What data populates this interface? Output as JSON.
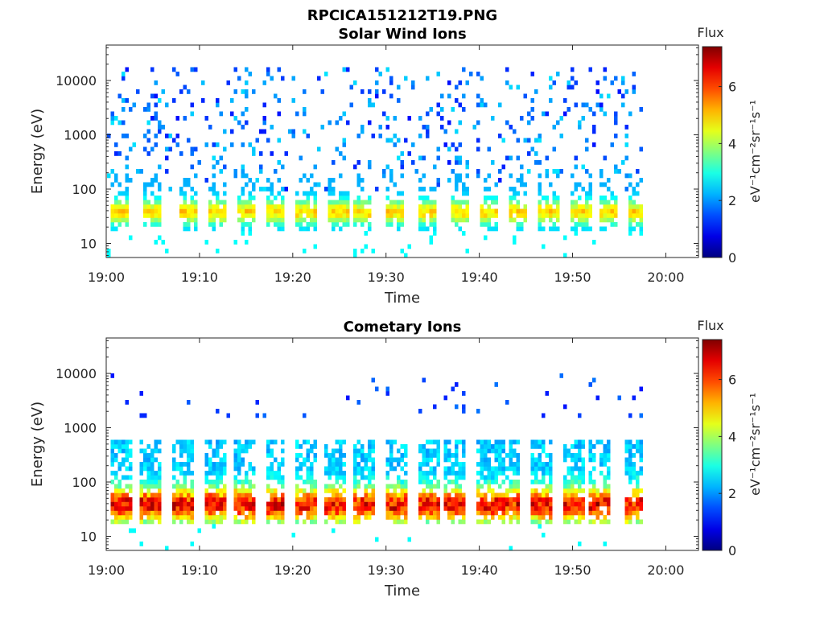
{
  "main_title": "RPCICA151212T19.PNG",
  "colorbar": {
    "label": "Flux",
    "unit_text": "eV⁻¹cm⁻²sr⁻¹s⁻¹",
    "ticks": [
      0,
      2,
      4,
      6
    ],
    "range": [
      0,
      7.4
    ],
    "colormap": "jet"
  },
  "chart_data": [
    {
      "type": "heatmap",
      "title": "Solar Wind Ions",
      "xlabel": "Time",
      "ylabel": "Energy (eV)",
      "x_ticks": [
        "19:00",
        "19:10",
        "19:20",
        "19:30",
        "19:40",
        "19:50",
        "20:00"
      ],
      "xlim_minutes": [
        0,
        63.5
      ],
      "data_end_minute": 57.3,
      "y_scale": "log",
      "y_ticks": [
        10,
        100,
        1000,
        10000
      ],
      "ylim": [
        5.5,
        45000
      ],
      "sweep_start_minutes": [
        0.2,
        3.8,
        7.5,
        10.6,
        13.8,
        16.8,
        20.2,
        23.7,
        26.3,
        29.8,
        33.3,
        36.8,
        39.9,
        42.8,
        46.2,
        49.7,
        52.7,
        55.7
      ],
      "peak_energy_eV": 38,
      "peak_flux": 5.3,
      "background": "sparse blue/cyan counts (flux 1-3) across 200 eV - 15000 eV"
    },
    {
      "type": "heatmap",
      "title": "Cometary Ions",
      "xlabel": "Time",
      "ylabel": "Energy (eV)",
      "x_ticks": [
        "19:00",
        "19:10",
        "19:20",
        "19:30",
        "19:40",
        "19:50",
        "20:00"
      ],
      "xlim_minutes": [
        0,
        63.5
      ],
      "data_end_minute": 57.3,
      "y_scale": "log",
      "y_ticks": [
        10,
        100,
        1000,
        10000
      ],
      "ylim": [
        5.5,
        45000
      ],
      "sweep_start_minutes": [
        0.3,
        3.5,
        6.9,
        10.3,
        13.5,
        16.8,
        20.2,
        23.2,
        26.3,
        29.8,
        33.2,
        35.9,
        39.4,
        41.8,
        45.2,
        48.7,
        51.7,
        55.4
      ],
      "peak_energy_eV": 38,
      "peak_flux": 6.8,
      "background": "sparse blue counts (flux 1-2) around 1500 eV - 10000 eV"
    }
  ]
}
